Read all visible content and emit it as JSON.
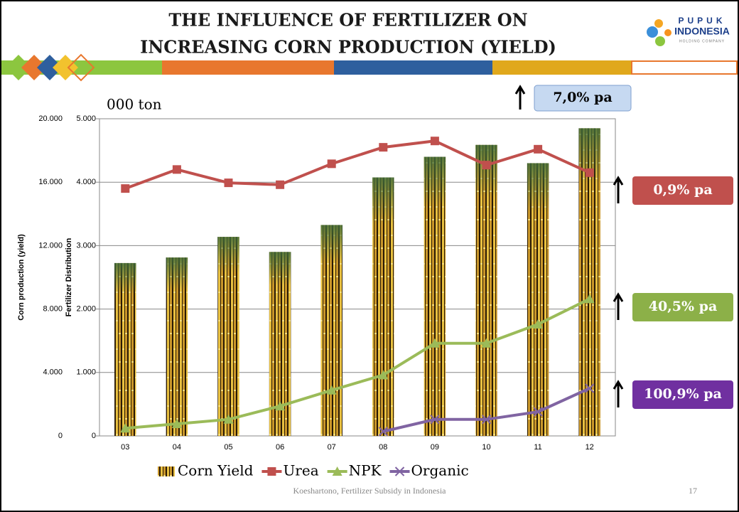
{
  "chart_data": {
    "type": "bar",
    "title": [
      "THE INFLUENCE OF FERTILIZER ON",
      "INCREASING CORN PRODUCTION (YIELD)"
    ],
    "logo": {
      "name": "PUPUK",
      "sub": "INDONESIA",
      "tagline": "HOLDING COMPANY"
    },
    "unit_label": "000 ton",
    "y_label": "Corn production (yield)",
    "y2_label": "Fertilizer Distribution",
    "categories": [
      "03",
      "04",
      "05",
      "06",
      "07",
      "08",
      "09",
      "10",
      "11",
      "12"
    ],
    "ylim": [
      0,
      20000
    ],
    "yticks": [
      0,
      {
        "value": 4000,
        "label": "4.000"
      },
      {
        "value": 8000,
        "label": "8.000"
      },
      {
        "value": 12000,
        "label": "12.000"
      },
      {
        "value": 16000,
        "label": "16.000"
      },
      {
        "value": 20000,
        "label": "20.000"
      }
    ],
    "y2lim": [
      0,
      5000
    ],
    "y2ticks": [
      0,
      {
        "value": 1000,
        "label": "1.000"
      },
      {
        "value": 2000,
        "label": "2.000"
      },
      {
        "value": 3000,
        "label": "3.000"
      },
      {
        "value": 4000,
        "label": "4.000"
      },
      {
        "value": 5000,
        "label": "5.000"
      }
    ],
    "grid": true,
    "series": [
      {
        "name": "Corn Yield",
        "type": "bar",
        "color": "#d9a520",
        "values": [
          10900,
          11250,
          12550,
          11600,
          13300,
          16300,
          17600,
          18350,
          17200,
          19400
        ]
      },
      {
        "name": "Urea",
        "type": "line",
        "marker": "square",
        "axis": "y2",
        "color": "#c0504d",
        "values": [
          3900,
          4200,
          3990,
          3960,
          4290,
          4550,
          4650,
          4270,
          4520,
          4150
        ]
      },
      {
        "name": "NPK",
        "type": "line",
        "marker": "triangle",
        "axis": "y2",
        "color": "#9bbb59",
        "values": [
          120,
          190,
          260,
          470,
          720,
          960,
          1460,
          1460,
          1760,
          2160
        ]
      },
      {
        "name": "Organic",
        "type": "line",
        "marker": "cross",
        "axis": "y2",
        "color": "#8064a2",
        "values": [
          null,
          null,
          null,
          null,
          null,
          70,
          260,
          260,
          380,
          750
        ]
      }
    ],
    "annotations": [
      {
        "text": "7,0% pa",
        "color": "#c6d9f1"
      },
      {
        "text": "0,9% pa",
        "color": "#c0504d"
      },
      {
        "text": "40,5% pa",
        "color": "#8cb048"
      },
      {
        "text": "100,9% pa",
        "color": "#7030a0"
      }
    ],
    "footer": {
      "source": "Koeshartono, Fertilizer Subsidy in Indonesia",
      "page": 17
    }
  }
}
